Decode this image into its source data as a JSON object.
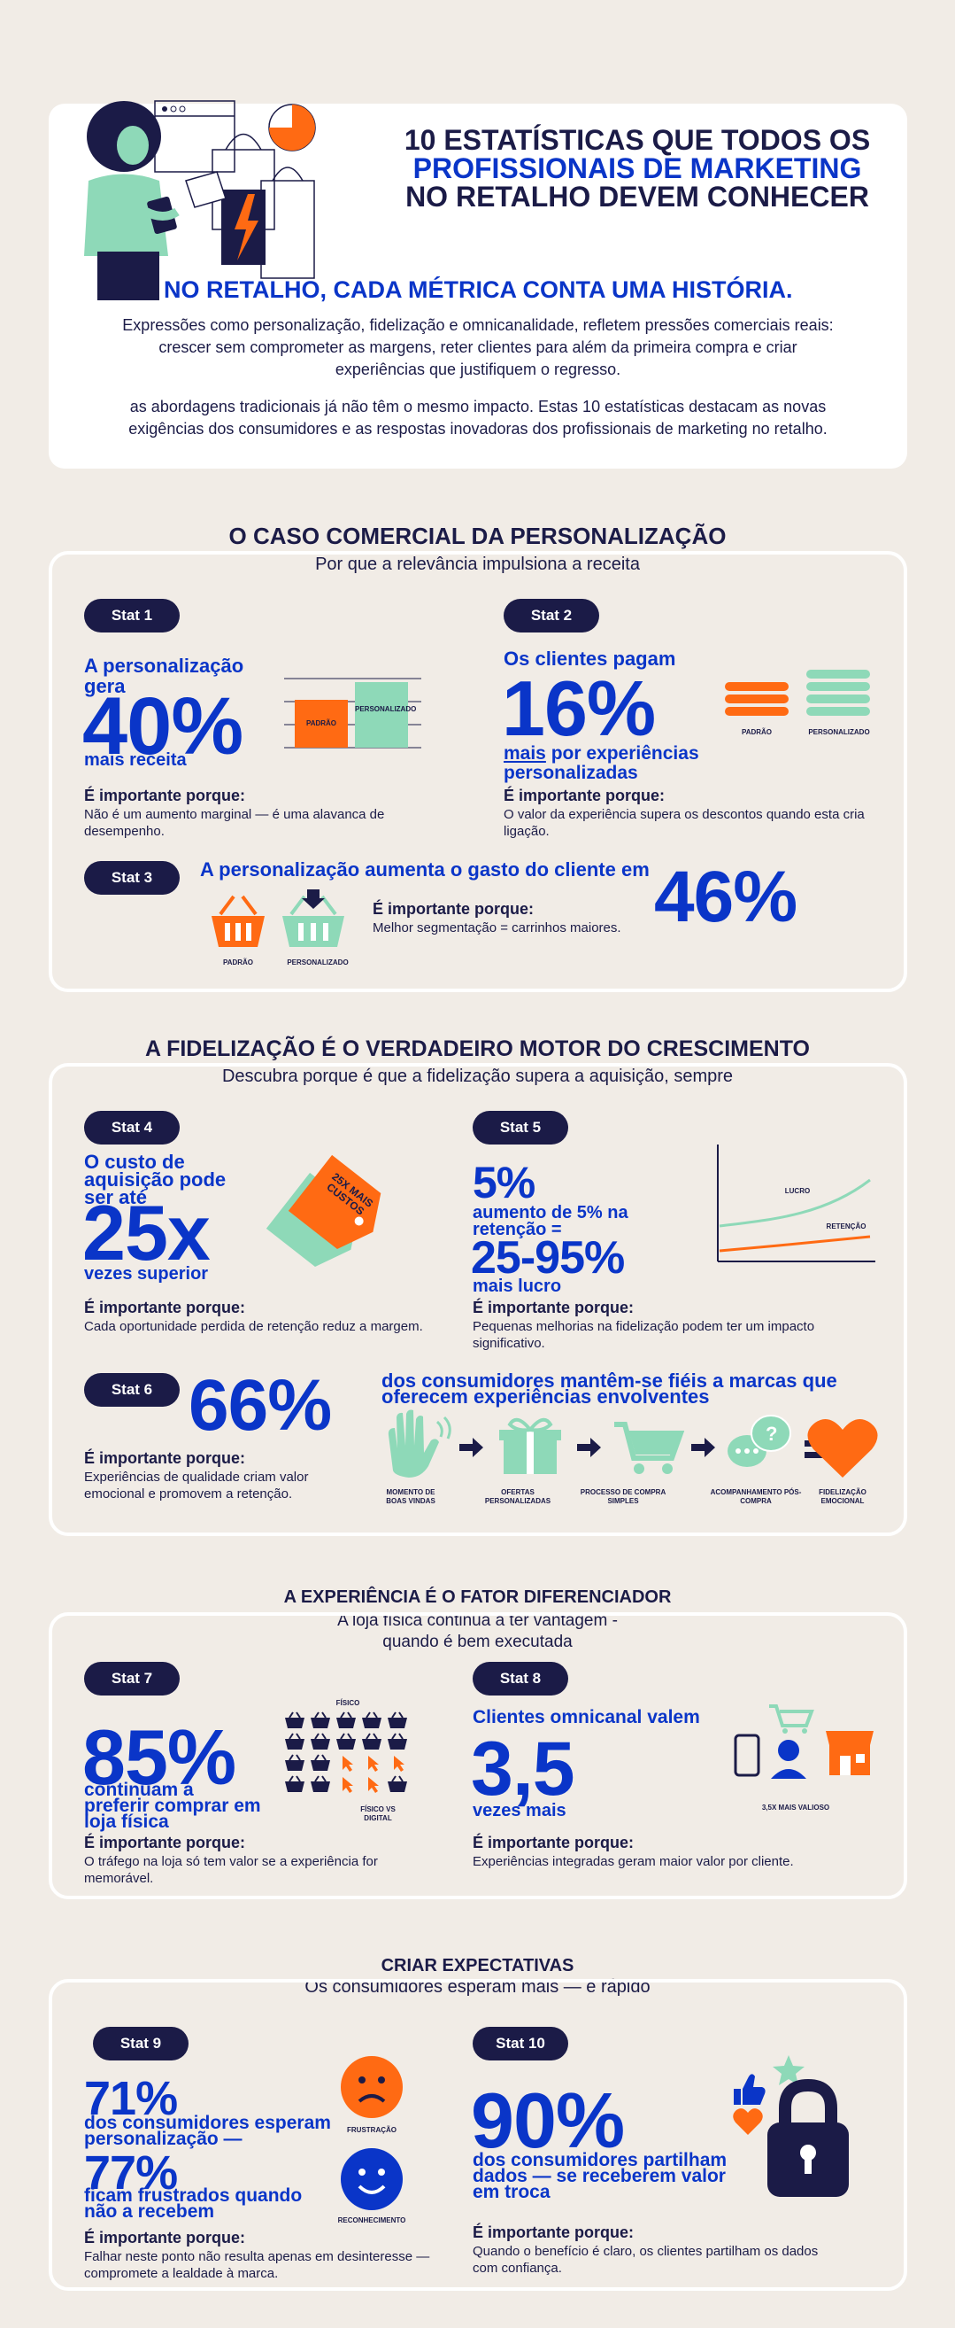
{
  "header": {
    "title_line1": "10 ESTATÍSTICAS QUE TODOS OS",
    "title_line2": "PROFISSIONAIS DE MARKETING",
    "title_line3": "NO RETALHO DEVEM CONHECER",
    "tagline": "NO RETALHO, CADA MÉTRICA CONTA UMA HISTÓRIA.",
    "para1": "Expressões como personalização, fidelização e omnicanalidade, refletem pressões comerciais reais: crescer sem comprometer as margens, reter clientes para além da primeira compra e criar experiências que justifiquem o regresso.",
    "para2": "as abordagens tradicionais já não têm o mesmo impacto. Estas 10 estatísticas destacam as novas exigências dos consumidores e as respostas inovadoras dos profissionais de marketing no retalho."
  },
  "s1": {
    "title": "O CASO COMERCIAL DA PERSONALIZAÇÃO",
    "subtitle": "Por que a relevância impulsiona a receita",
    "why_heading": "É importante porque:",
    "stat1": {
      "pill": "Stat 1",
      "lead": "A personalização gera",
      "big": "40%",
      "tail": "mais receita",
      "why": "Não é um aumento marginal — é uma alavanca de desempenho.",
      "bar_std": "PADRÃO",
      "bar_pers": "PERSONALIZADO"
    },
    "stat2": {
      "pill": "Stat 2",
      "lead": "Os clientes pagam",
      "big": "16%",
      "tail_u": "mais",
      "tail": " por experiências personalizadas",
      "why": "O valor da experiência supera os descontos quando esta cria ligação.",
      "lbl_std": "PADRÃO",
      "lbl_pers": "PERSONALIZADO"
    },
    "stat3": {
      "pill": "Stat 3",
      "lead": "A personalização aumenta o gasto do cliente em",
      "big": "46%",
      "why": "Melhor segmentação = carrinhos maiores.",
      "lbl_std": "PADRÃO",
      "lbl_pers": "PERSONALIZADO"
    }
  },
  "s2": {
    "title": "A FIDELIZAÇÃO É O VERDADEIRO MOTOR DO CRESCIMENTO",
    "subtitle": "Descubra porque é que a fidelização supera a aquisição, sempre",
    "why_heading": "É importante porque:",
    "stat4": {
      "pill": "Stat 4",
      "lead": "O custo de aquisição pode ser até",
      "big": "25x",
      "tail": "vezes superior",
      "tag": "25X MAIS CUSTOS",
      "why": "Cada oportunidade perdida de retenção reduz a margem."
    },
    "stat5": {
      "pill": "Stat 5",
      "big_small": "5%",
      "lead": "aumento de 5% na retenção =",
      "big": "25-95%",
      "tail": "mais lucro",
      "line1": "LUCRO",
      "line2": "RETENÇÃO",
      "why": "Pequenas melhorias na fidelização podem ter um impacto significativo."
    },
    "stat6": {
      "pill": "Stat 6",
      "big": "66%",
      "lead": "dos consumidores mantêm-se fiéis a marcas que oferecem experiências envolventes",
      "why": "Experiências de qualidade criam valor emocional e promovem a retenção.",
      "steps": [
        "MOMENTO DE BOAS VINDAS",
        "OFERTAS PERSONALIZADAS",
        "PROCESSO DE COMPRA SIMPLES",
        "ACOMPANHAMENTO PÓS-COMPRA",
        "FIDELIZAÇÃO EMOCIONAL"
      ]
    }
  },
  "s3": {
    "title": "A EXPERIÊNCIA É O FATOR DIFERENCIADOR",
    "subtitle": "A loja física continua a ter vantagem - quando é bem executada",
    "why_heading": "É importante porque:",
    "stat7": {
      "pill": "Stat 7",
      "big": "85%",
      "lead": "continuam a preferir comprar em loja física",
      "lbl1": "FÍSICO",
      "lbl2": "FÍSICO VS DIGITAL",
      "why": "O tráfego na loja só tem valor se a experiência for memorável."
    },
    "stat8": {
      "pill": "Stat 8",
      "lead": "Clientes omnicanal valem",
      "big": "3,5",
      "tail": "vezes mais",
      "lbl": "3,5X MAIS VALIOSO",
      "why": "Experiências integradas geram maior valor por cliente."
    }
  },
  "s4": {
    "title": "CRIAR EXPECTATIVAS",
    "subtitle": "Os consumidores esperam mais — e rápido",
    "why_heading": "É importante porque:",
    "stat9": {
      "pill": "Stat 9",
      "big1": "71%",
      "lead1": "dos consumidores esperam personalização —",
      "big2": "77%",
      "lead2": "ficam frustrados quando não a recebem",
      "lbl_sad": "FRUSTRAÇÃO",
      "lbl_happy": "RECONHECIMENTO",
      "why": "Falhar neste ponto não resulta apenas em desinteresse — compromete a lealdade à marca."
    },
    "stat10": {
      "pill": "Stat 10",
      "big": "90%",
      "lead": "dos consumidores partilham dados — se receberem valor em troca",
      "why": "Quando o benefício é claro, os clientes partilham os dados com confiança."
    }
  },
  "colors": {
    "navy": "#1b1b47",
    "blue": "#0a35c8",
    "orange": "#ff6a13",
    "mint": "#8ed9b8",
    "bg": "#f1ece6"
  }
}
